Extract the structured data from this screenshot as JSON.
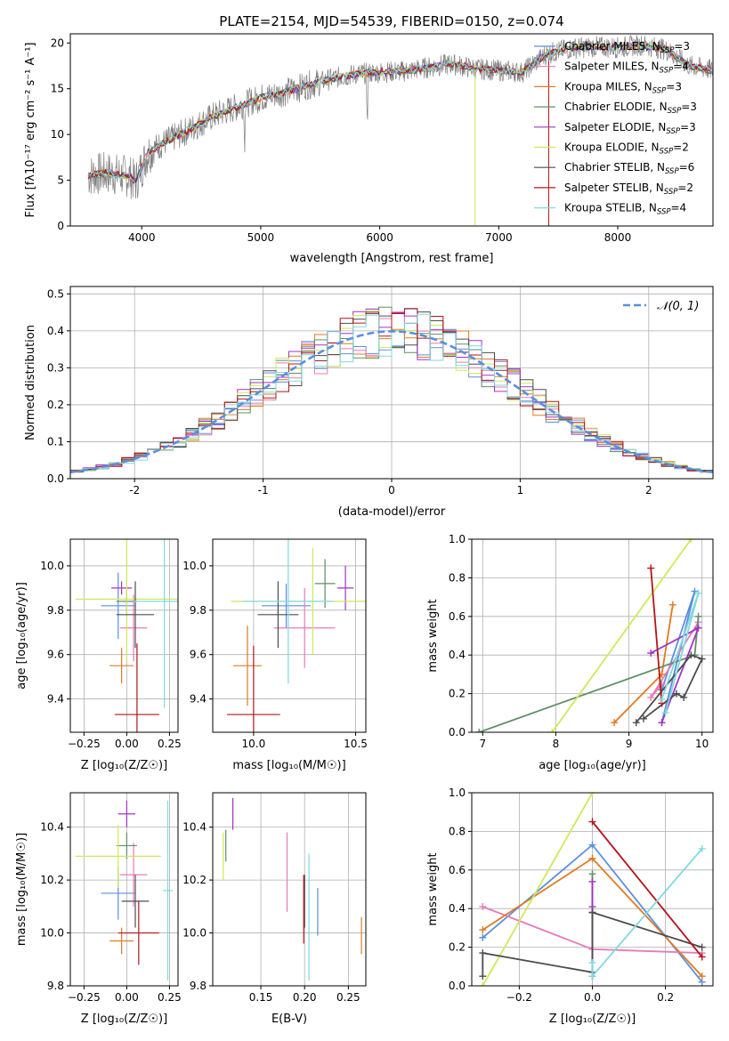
{
  "figure": {
    "title": "PLATE=2154, MJD=54539, FIBERID=0150, z=0.074"
  },
  "colors": {
    "chabrier_miles": "#5b8fde",
    "salpeter_miles": "#e87ab8",
    "kroupa_miles": "#e07a22",
    "chabrier_elodie": "#5f8f66",
    "salpeter_elodie": "#a133c4",
    "kroupa_elodie": "#cfe85a",
    "chabrier_stelib": "#4d4d4d",
    "salpeter_stelib": "#b3151b",
    "kroupa_stelib": "#7fd9df",
    "observed_spectrum": "#808080",
    "normal_curve": "#5b8fde",
    "grid": "#b0b0b0"
  },
  "chart_data": [
    {
      "id": "spectrum",
      "type": "line",
      "xlabel": "wavelength [Angstrom, rest frame]",
      "ylabel": "Flux [fλ10⁻¹⁷ erg cm⁻² s⁻¹ A⁻¹]",
      "xlim": [
        3400,
        8800
      ],
      "ylim": [
        0,
        21
      ],
      "xticks": [
        4000,
        5000,
        6000,
        7000,
        8000
      ],
      "yticks": [
        0,
        5,
        10,
        15,
        20
      ],
      "grid": false,
      "legend_position": "right",
      "continuum": {
        "x": [
          3550,
          3700,
          3800,
          3900,
          3950,
          4050,
          4200,
          4400,
          4600,
          4800,
          5000,
          5200,
          5400,
          5600,
          5800,
          6000,
          6200,
          6400,
          6600,
          6800,
          7000,
          7200,
          7400,
          7600,
          7800,
          8000,
          8200,
          8400,
          8600,
          8800
        ],
        "y": [
          5.5,
          5.8,
          5.6,
          5.4,
          4.8,
          8.0,
          9.2,
          10.5,
          12.0,
          13.0,
          14.0,
          14.6,
          15.4,
          16.1,
          16.6,
          16.8,
          16.9,
          17.3,
          17.7,
          17.2,
          17.0,
          16.8,
          18.8,
          19.4,
          19.6,
          19.5,
          19.8,
          19.3,
          17.5,
          17.0
        ]
      },
      "series": [
        {
          "name": "Chabrier MILES, N_SSP=3",
          "color_key": "chabrier_miles"
        },
        {
          "name": "Salpeter MILES, N_SSP=4",
          "color_key": "salpeter_miles"
        },
        {
          "name": "Kroupa MILES, N_SSP=3",
          "color_key": "kroupa_miles"
        },
        {
          "name": "Chabrier ELODIE, N_SSP=3",
          "color_key": "chabrier_elodie"
        },
        {
          "name": "Salpeter ELODIE, N_SSP=3",
          "color_key": "salpeter_elodie"
        },
        {
          "name": "Kroupa ELODIE, N_SSP=2",
          "color_key": "kroupa_elodie"
        },
        {
          "name": "Chabrier STELIB, N_SSP=6",
          "color_key": "chabrier_stelib"
        },
        {
          "name": "Salpeter STELIB, N_SSP=2",
          "color_key": "salpeter_stelib"
        },
        {
          "name": "Kroupa STELIB, N_SSP=4",
          "color_key": "kroupa_stelib"
        }
      ],
      "legend_labels": [
        {
          "base": "Chabrier MILES, N",
          "sub": "SSP",
          "tail": "=3"
        },
        {
          "base": "Salpeter MILES, N",
          "sub": "SSP",
          "tail": "=4"
        },
        {
          "base": "Kroupa MILES, N",
          "sub": "SSP",
          "tail": "=3"
        },
        {
          "base": "Chabrier ELODIE, N",
          "sub": "SSP",
          "tail": "=3"
        },
        {
          "base": "Salpeter ELODIE, N",
          "sub": "SSP",
          "tail": "=3"
        },
        {
          "base": "Kroupa ELODIE, N",
          "sub": "SSP",
          "tail": "=2"
        },
        {
          "base": "Chabrier STELIB, N",
          "sub": "SSP",
          "tail": "=6"
        },
        {
          "base": "Salpeter STELIB, N",
          "sub": "SSP",
          "tail": "=2"
        },
        {
          "base": "Kroupa STELIB, N",
          "sub": "SSP",
          "tail": "=4"
        }
      ]
    },
    {
      "id": "residuals",
      "type": "line",
      "xlabel": "(data-model)/error",
      "ylabel": "Normed distribution",
      "xlim": [
        -2.5,
        2.5
      ],
      "ylim": [
        0,
        0.52
      ],
      "xticks": [
        -2,
        -1,
        0,
        1,
        2
      ],
      "yticks": [
        0.0,
        0.1,
        0.2,
        0.3,
        0.4,
        0.5
      ],
      "grid": true,
      "legend": "𝒩(0, 1)",
      "legend_position": "top-right",
      "bin_width": 0.1
    },
    {
      "id": "age_vs_Z",
      "type": "scatter",
      "xlabel": "Z [log₁₀(Z/Z☉)]",
      "ylabel": "age  [log₁₀(age/yr)]",
      "xlim": [
        -0.33,
        0.3
      ],
      "ylim": [
        9.25,
        10.12
      ],
      "xticks": [
        -0.25,
        0.0,
        0.25
      ],
      "xticklabels": [
        "−0.25",
        "0.00",
        "0.25"
      ],
      "yticks": [
        9.4,
        9.6,
        9.8,
        10.0
      ],
      "grid": true,
      "points": [
        {
          "key": "chabrier_miles",
          "x": -0.05,
          "xerr": 0.1,
          "y": 9.82,
          "yerr": 0.15
        },
        {
          "key": "salpeter_miles",
          "x": 0.04,
          "xerr": 0.08,
          "y": 9.72,
          "yerr": 0.15
        },
        {
          "key": "kroupa_miles",
          "x": -0.03,
          "xerr": 0.07,
          "y": 9.55,
          "yerr": 0.08
        },
        {
          "key": "chabrier_elodie",
          "x": 0.0,
          "xerr": 0.06,
          "y": 9.84,
          "yerr": 0.05
        },
        {
          "key": "salpeter_elodie",
          "x": -0.03,
          "xerr": 0.06,
          "y": 9.9,
          "yerr": 0.03
        },
        {
          "key": "kroupa_elodie",
          "x": 0.0,
          "xerr": 0.3,
          "y": 9.85,
          "yerr": 0.28
        },
        {
          "key": "chabrier_stelib",
          "x": 0.05,
          "xerr": 0.11,
          "y": 9.78,
          "yerr": 0.15
        },
        {
          "key": "salpeter_stelib",
          "x": 0.06,
          "xerr": 0.13,
          "y": 9.33,
          "yerr": 0.32
        },
        {
          "key": "kroupa_stelib",
          "x": 0.22,
          "xerr": 0.18,
          "y": 9.84,
          "yerr": 0.48
        }
      ]
    },
    {
      "id": "age_vs_mass",
      "type": "scatter",
      "xlabel": "mass [log₁₀(M/M☉)]",
      "xlim": [
        9.8,
        10.55
      ],
      "ylim": [
        9.25,
        10.12
      ],
      "xticks": [
        10.0,
        10.5
      ],
      "xticklabels": [
        "10.0",
        "10.5"
      ],
      "yticks": [
        9.4,
        9.6,
        9.8,
        10.0
      ],
      "grid": true,
      "points": [
        {
          "key": "chabrier_miles",
          "x": 10.16,
          "xerr": 0.12,
          "y": 9.82,
          "yerr": 0.1
        },
        {
          "key": "salpeter_miles",
          "x": 10.25,
          "xerr": 0.15,
          "y": 9.72,
          "yerr": 0.18
        },
        {
          "key": "kroupa_miles",
          "x": 9.97,
          "xerr": 0.07,
          "y": 9.55,
          "yerr": 0.18
        },
        {
          "key": "chabrier_elodie",
          "x": 10.35,
          "xerr": 0.05,
          "y": 9.92,
          "yerr": 0.11
        },
        {
          "key": "salpeter_elodie",
          "x": 10.45,
          "xerr": 0.04,
          "y": 9.9,
          "yerr": 0.1
        },
        {
          "key": "kroupa_elodie",
          "x": 10.29,
          "xerr": 0.4,
          "y": 9.84,
          "yerr": 0.24
        },
        {
          "key": "chabrier_stelib",
          "x": 10.12,
          "xerr": 0.1,
          "y": 9.78,
          "yerr": 0.15
        },
        {
          "key": "salpeter_stelib",
          "x": 10.0,
          "xerr": 0.13,
          "y": 9.33,
          "yerr": 0.31
        },
        {
          "key": "kroupa_stelib",
          "x": 10.17,
          "xerr": 0.22,
          "y": 9.84,
          "yerr": 0.37
        }
      ]
    },
    {
      "id": "weight_vs_age",
      "type": "line",
      "xlabel": "age  [log₁₀(age/yr)]",
      "ylabel": "mass weight",
      "xlim": [
        6.85,
        10.15
      ],
      "ylim": [
        0,
        1
      ],
      "xticks": [
        7,
        8,
        9,
        10
      ],
      "yticks": [
        0.0,
        0.2,
        0.4,
        0.6,
        0.8,
        1.0
      ],
      "grid": true,
      "series": [
        {
          "key": "chabrier_miles",
          "x": [
            9.45,
            9.9,
            9.45
          ],
          "y": [
            0.05,
            0.73,
            0.22
          ]
        },
        {
          "key": "salpeter_miles",
          "x": [
            9.45,
            9.3,
            9.95
          ],
          "y": [
            0.25,
            0.18,
            0.57
          ]
        },
        {
          "key": "kroupa_miles",
          "x": [
            8.8,
            9.45,
            9.6
          ],
          "y": [
            0.05,
            0.3,
            0.66
          ]
        },
        {
          "key": "chabrier_elodie",
          "x": [
            6.95,
            9.9,
            9.95
          ],
          "y": [
            0.0,
            0.4,
            0.6
          ]
        },
        {
          "key": "salpeter_elodie",
          "x": [
            9.45,
            9.95,
            9.3
          ],
          "y": [
            0.05,
            0.54,
            0.41
          ]
        },
        {
          "key": "kroupa_elodie",
          "x": [
            7.95,
            9.85
          ],
          "y": [
            0.0,
            1.0
          ]
        },
        {
          "key": "chabrier_stelib",
          "x": [
            9.2,
            9.65,
            9.75,
            10.0,
            9.85,
            9.1
          ],
          "y": [
            0.07,
            0.2,
            0.18,
            0.38,
            0.4,
            0.05
          ]
        },
        {
          "key": "salpeter_stelib",
          "x": [
            9.3,
            9.45
          ],
          "y": [
            0.85,
            0.15
          ]
        },
        {
          "key": "kroupa_stelib",
          "x": [
            9.5,
            9.95,
            9.45
          ],
          "y": [
            0.1,
            0.72,
            0.17
          ]
        }
      ]
    },
    {
      "id": "mass_vs_Z",
      "type": "scatter",
      "xlabel": "Z [log₁₀(Z/Z☉)]",
      "ylabel": "mass [log₁₀(M/M☉)]",
      "xlim": [
        -0.33,
        0.3
      ],
      "ylim": [
        9.8,
        10.53
      ],
      "xticks": [
        -0.25,
        0.0,
        0.25
      ],
      "xticklabels": [
        "−0.25",
        "0.00",
        "0.25"
      ],
      "yticks": [
        9.8,
        10.0,
        10.2,
        10.4
      ],
      "grid": true,
      "points": [
        {
          "key": "chabrier_miles",
          "x": -0.05,
          "xerr": 0.1,
          "y": 10.15,
          "yerr": 0.1
        },
        {
          "key": "salpeter_miles",
          "x": 0.04,
          "xerr": 0.08,
          "y": 10.22,
          "yerr": 0.12
        },
        {
          "key": "kroupa_miles",
          "x": -0.03,
          "xerr": 0.07,
          "y": 9.97,
          "yerr": 0.05
        },
        {
          "key": "chabrier_elodie",
          "x": 0.0,
          "xerr": 0.06,
          "y": 10.33,
          "yerr": 0.05
        },
        {
          "key": "salpeter_elodie",
          "x": 0.0,
          "xerr": 0.05,
          "y": 10.45,
          "yerr": 0.05
        },
        {
          "key": "kroupa_elodie",
          "x": -0.05,
          "xerr": 0.25,
          "y": 10.29,
          "yerr": 0.12
        },
        {
          "key": "chabrier_stelib",
          "x": 0.05,
          "xerr": 0.08,
          "y": 10.12,
          "yerr": 0.1
        },
        {
          "key": "salpeter_stelib",
          "x": 0.07,
          "xerr": 0.12,
          "y": 10.0,
          "yerr": 0.12
        },
        {
          "key": "kroupa_stelib",
          "x": 0.24,
          "xerr": 0.03,
          "y": 10.16,
          "yerr": 0.34
        }
      ]
    },
    {
      "id": "mass_vs_ebv",
      "type": "scatter",
      "xlabel": "E(B-V)",
      "xlim": [
        0.095,
        0.27
      ],
      "ylim": [
        9.8,
        10.53
      ],
      "xticks": [
        0.15,
        0.2,
        0.25
      ],
      "xticklabels": [
        "0.15",
        "0.20",
        "0.25"
      ],
      "yticks": [
        9.8,
        10.0,
        10.2,
        10.4
      ],
      "grid": true,
      "points": [
        {
          "key": "chabrier_miles",
          "x": 0.215,
          "xerr": 0.0,
          "y": 10.08,
          "yerr": 0.09
        },
        {
          "key": "salpeter_miles",
          "x": 0.18,
          "xerr": 0.0,
          "y": 10.23,
          "yerr": 0.15
        },
        {
          "key": "kroupa_miles",
          "x": 0.265,
          "xerr": 0.0,
          "y": 9.99,
          "yerr": 0.07
        },
        {
          "key": "chabrier_elodie",
          "x": 0.11,
          "xerr": 0.0,
          "y": 10.33,
          "yerr": 0.06
        },
        {
          "key": "salpeter_elodie",
          "x": 0.118,
          "xerr": 0.0,
          "y": 10.45,
          "yerr": 0.06
        },
        {
          "key": "kroupa_elodie",
          "x": 0.107,
          "xerr": 0.0,
          "y": 10.29,
          "yerr": 0.09
        },
        {
          "key": "chabrier_stelib",
          "x": 0.2,
          "xerr": 0.0,
          "y": 10.12,
          "yerr": 0.1
        },
        {
          "key": "salpeter_stelib",
          "x": 0.199,
          "xerr": 0.0,
          "y": 10.09,
          "yerr": 0.13
        },
        {
          "key": "kroupa_stelib",
          "x": 0.205,
          "xerr": 0.0,
          "y": 10.06,
          "yerr": 0.24
        }
      ]
    },
    {
      "id": "weight_vs_Z",
      "type": "line",
      "xlabel": "Z [log₁₀(Z/Z☉)]",
      "ylabel": "mass weight",
      "xlim": [
        -0.33,
        0.33
      ],
      "ylim": [
        0,
        1
      ],
      "xticks": [
        -0.2,
        0.0,
        0.2
      ],
      "xticklabels": [
        "−0.2",
        "0.0",
        "0.2"
      ],
      "yticks": [
        0.0,
        0.2,
        0.4,
        0.6,
        0.8,
        1.0
      ],
      "grid": true,
      "series": [
        {
          "key": "chabrier_miles",
          "x": [
            -0.3,
            0.0,
            0.3
          ],
          "y": [
            0.25,
            0.73,
            0.02
          ]
        },
        {
          "key": "salpeter_miles",
          "x": [
            -0.3,
            0.0,
            0.3
          ],
          "y": [
            0.41,
            0.19,
            0.17
          ]
        },
        {
          "key": "kroupa_miles",
          "x": [
            -0.3,
            0.0,
            0.3
          ],
          "y": [
            0.29,
            0.66,
            0.05
          ]
        },
        {
          "key": "chabrier_elodie",
          "x": [
            0.0,
            0.0,
            0.0
          ],
          "y": [
            0.58,
            0.38,
            0.05
          ]
        },
        {
          "key": "salpeter_elodie",
          "x": [
            0.0,
            0.0,
            0.0
          ],
          "y": [
            0.54,
            0.41,
            0.05
          ]
        },
        {
          "key": "kroupa_elodie",
          "x": [
            -0.3,
            0.0
          ],
          "y": [
            0.0,
            1.0
          ]
        },
        {
          "key": "chabrier_stelib",
          "x": [
            -0.3,
            -0.3,
            0.0,
            0.0,
            0.0,
            0.3
          ],
          "y": [
            0.05,
            0.17,
            0.07,
            0.38,
            0.38,
            0.2
          ]
        },
        {
          "key": "salpeter_stelib",
          "x": [
            0.0,
            0.3
          ],
          "y": [
            0.85,
            0.15
          ]
        },
        {
          "key": "kroupa_stelib",
          "x": [
            0.0,
            0.0,
            0.3
          ],
          "y": [
            0.12,
            0.05,
            0.71
          ]
        }
      ]
    }
  ]
}
